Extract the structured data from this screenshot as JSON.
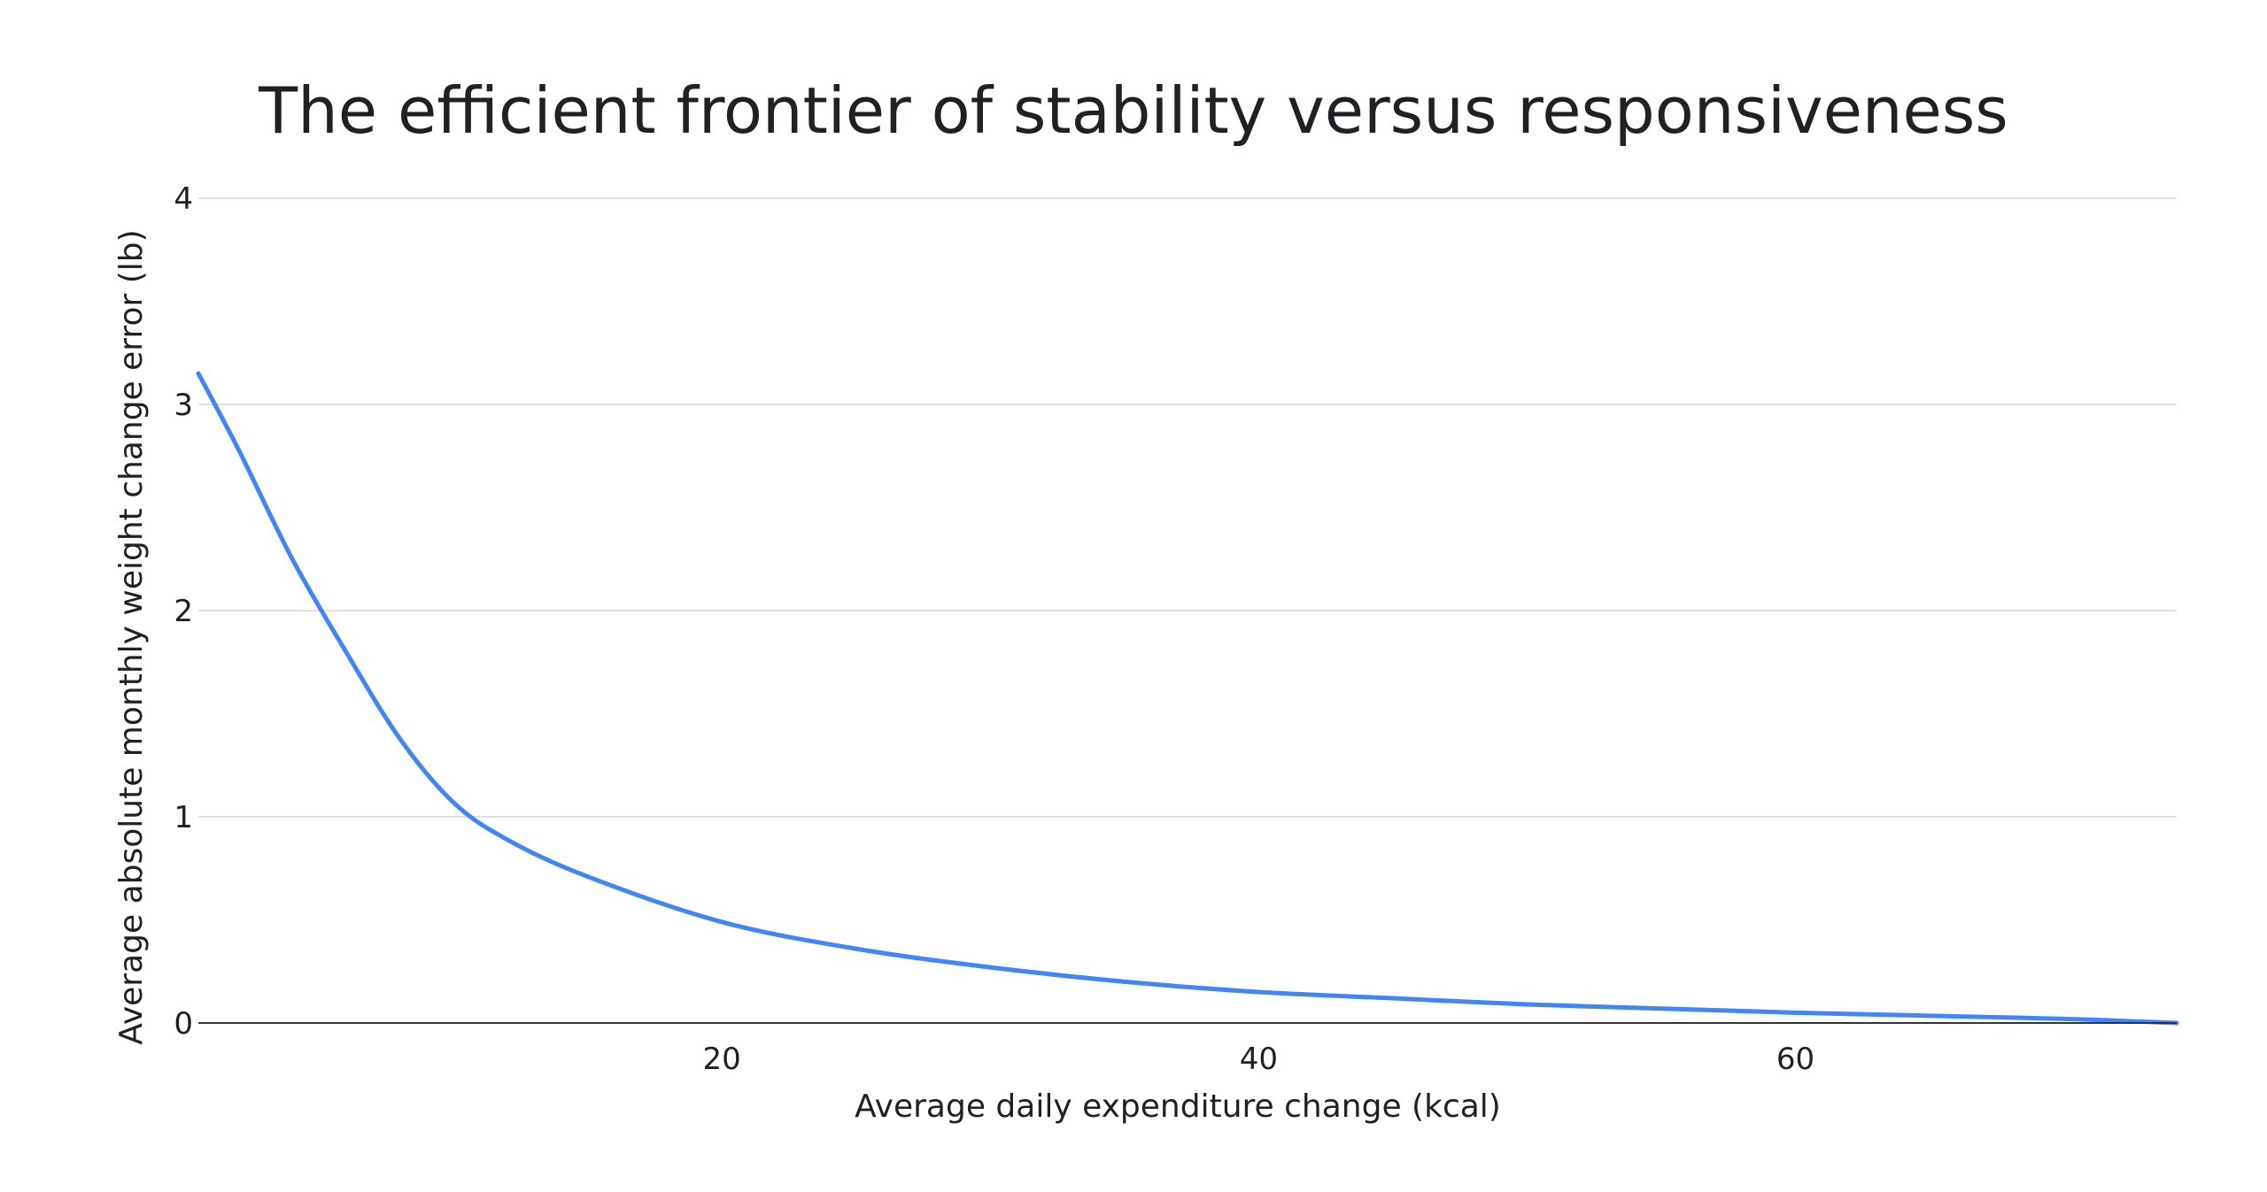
{
  "chart_data": {
    "type": "line",
    "title": "The efficient frontier of stability versus responsiveness",
    "xlabel": "Average daily expenditure change (kcal)",
    "ylabel": "Average absolute monthly weight change error (lb)",
    "xlim": [
      0.5,
      74.2
    ],
    "ylim": [
      0,
      4
    ],
    "xticks": [
      20,
      40,
      60
    ],
    "yticks": [
      0,
      1,
      2,
      3,
      4
    ],
    "grid": true,
    "legend": "none",
    "series": [
      {
        "color": "#4285f4",
        "x": [
          0.5,
          2,
          4,
          6,
          8,
          10,
          12,
          15,
          20,
          25,
          30,
          35,
          40,
          45,
          50,
          55,
          60,
          65,
          70,
          74.2
        ],
        "y": [
          3.15,
          2.78,
          2.25,
          1.8,
          1.38,
          1.07,
          0.89,
          0.71,
          0.49,
          0.36,
          0.27,
          0.2,
          0.15,
          0.12,
          0.09,
          0.07,
          0.05,
          0.035,
          0.02,
          0.0
        ]
      }
    ]
  }
}
